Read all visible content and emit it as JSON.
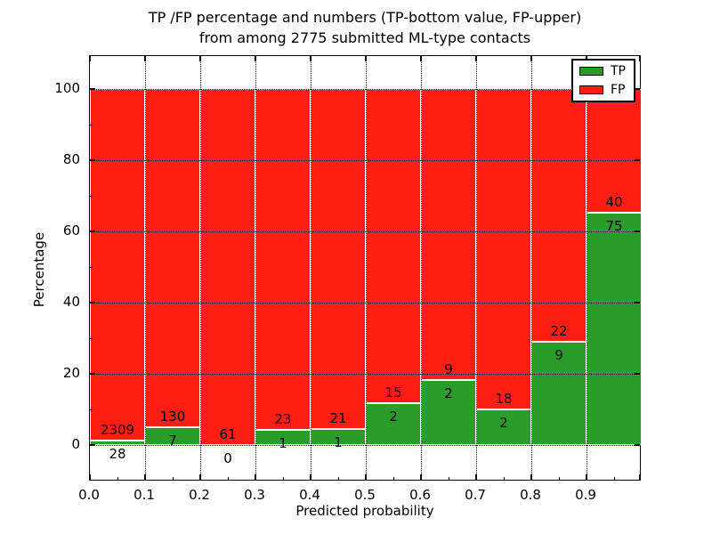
{
  "figure": {
    "title_line1": "TP /FP percentage and numbers (TP-bottom value, FP-upper)",
    "title_line2": "from among 2775 submitted ML-type contacts"
  },
  "chart_data": {
    "type": "bar",
    "variant": "stacked-percentage-histogram",
    "title": "TP /FP percentage and numbers (TP-bottom value, FP-upper)\nfrom among 2775 submitted ML-type contacts",
    "total_submitted_contacts": 2775,
    "xlabel": "Predicted probability",
    "ylabel": "Percentage",
    "categories": [
      "0.0",
      "0.1",
      "0.2",
      "0.3",
      "0.4",
      "0.5",
      "0.6",
      "0.7",
      "0.8",
      "0.9"
    ],
    "bin_width": 0.1,
    "series": [
      {
        "name": "TP",
        "color": "#2a9c28",
        "counts": [
          28,
          7,
          0,
          1,
          1,
          2,
          2,
          2,
          9,
          75
        ]
      },
      {
        "name": "FP",
        "color": "#ff1d14",
        "counts": [
          2309,
          130,
          61,
          23,
          21,
          15,
          9,
          18,
          22,
          40
        ]
      }
    ],
    "tp_percent_of_bin": [
      1.2,
      5.1,
      0.0,
      4.2,
      4.5,
      11.8,
      18.2,
      10.0,
      29.0,
      65.2
    ],
    "bars_total_percent": 100,
    "yticks": [
      "0",
      "20",
      "40",
      "60",
      "80",
      "100"
    ],
    "xtick_labels": [
      "0.0",
      "0.1",
      "0.2",
      "0.3",
      "0.4",
      "0.5",
      "0.6",
      "0.7",
      "0.8",
      "0.9"
    ],
    "ylim": [
      -10.25,
      109.25
    ],
    "xlim": [
      0.0,
      1.0
    ],
    "grid": "dotted",
    "legend": {
      "position": "upper-right",
      "items": [
        {
          "label": "TP"
        },
        {
          "label": "FP"
        }
      ]
    }
  }
}
